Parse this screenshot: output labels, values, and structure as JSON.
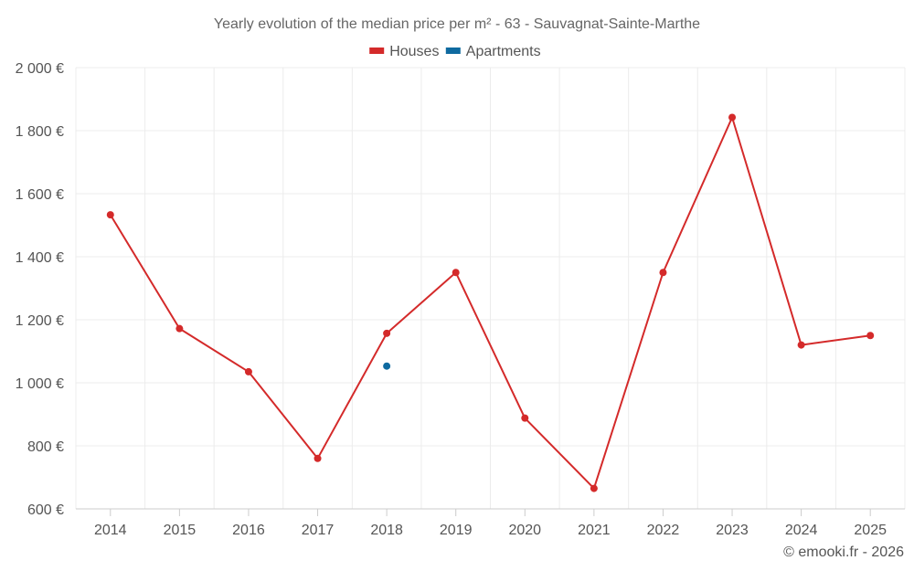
{
  "chart_data": {
    "type": "line",
    "title": "Yearly evolution of the median price per m² - 63 - Sauvagnat-Sainte-Marthe",
    "categories": [
      "2014",
      "2015",
      "2016",
      "2017",
      "2018",
      "2019",
      "2020",
      "2021",
      "2022",
      "2023",
      "2024",
      "2025"
    ],
    "series": [
      {
        "name": "Houses",
        "color": "#d42a2a",
        "values": [
          1533,
          1172,
          1035,
          760,
          1157,
          1350,
          888,
          665,
          1350,
          1842,
          1120,
          1150
        ]
      },
      {
        "name": "Apartments",
        "color": "#0f6aa0",
        "values": [
          null,
          null,
          null,
          null,
          1053,
          null,
          null,
          null,
          null,
          null,
          null,
          null
        ]
      }
    ],
    "ylim": [
      600,
      2000
    ],
    "yticks": [
      600,
      800,
      1000,
      1200,
      1400,
      1600,
      1800,
      2000
    ],
    "ytick_labels": [
      "600 €",
      "800 €",
      "1 000 €",
      "1 200 €",
      "1 400 €",
      "1 600 €",
      "1 800 €",
      "2 000 €"
    ],
    "legend_position": "top-center",
    "grid": true,
    "xlabel": "",
    "ylabel": ""
  },
  "credit": "© emooki.fr - 2026"
}
